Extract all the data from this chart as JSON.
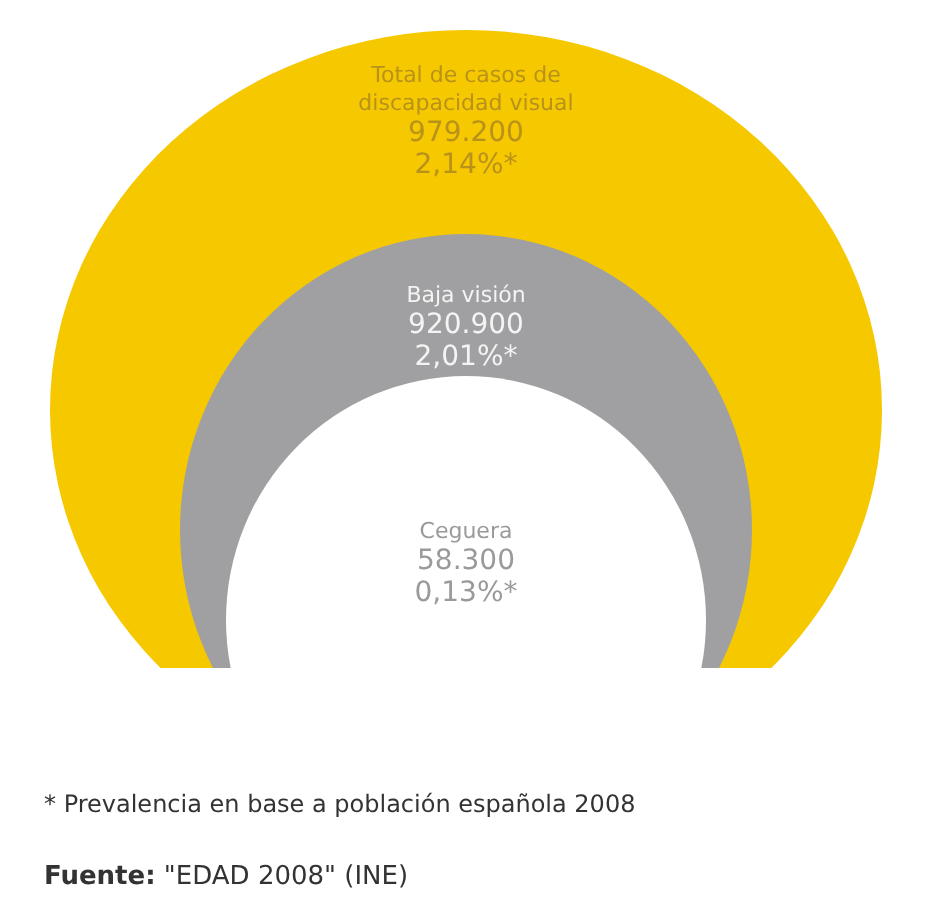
{
  "chart_data": {
    "type": "other",
    "categories": [
      "Total de casos de discapacidad visual",
      "Baja visión",
      "Ceguera"
    ],
    "series": [
      {
        "values": [
          979200,
          920900,
          58300
        ],
        "value_labels": [
          "979.200",
          "920.900",
          "58.300"
        ],
        "colors": [
          "#f6c800",
          "#a0a0a2",
          "#ffffff"
        ]
      },
      {
        "values": [
          2.14,
          2.01,
          0.13
        ],
        "value_labels": [
          "2,14%*",
          "2,01%*",
          "0,13%*"
        ],
        "colors": [
          "#f6c800",
          "#a0a0a2",
          "#ffffff"
        ]
      }
    ],
    "annotations": [
      "* Prevalencia en base a población española 2008",
      "Fuente: \"EDAD 2008\" (INE)"
    ]
  }
}
